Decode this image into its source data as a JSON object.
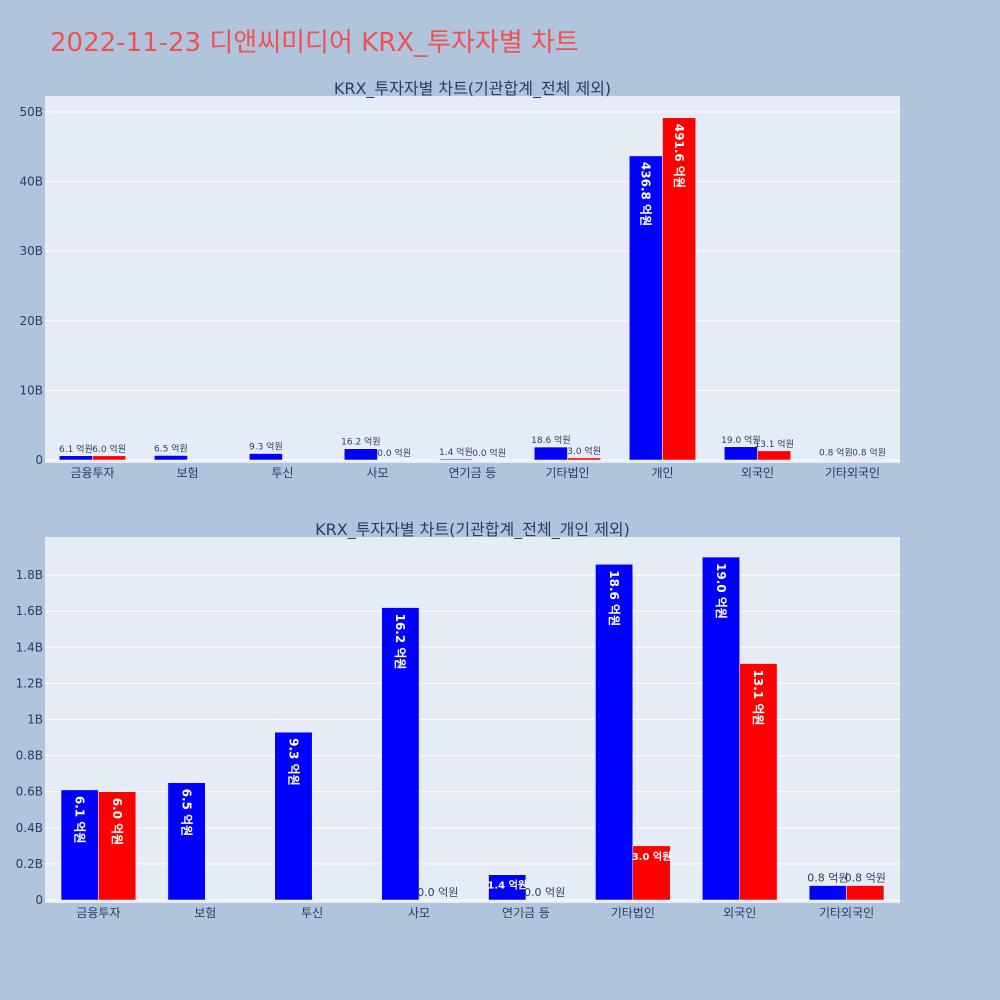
{
  "page_title": "2022-11-23 디앤씨미디어 KRX_투자자별 차트",
  "chart_data": [
    {
      "type": "bar",
      "title": "KRX_투자자별 차트(기관합계_전체 제외)",
      "categories": [
        "금융투자",
        "보험",
        "투신",
        "사모",
        "연기금 등",
        "기타법인",
        "개인",
        "외국인",
        "기타외국인"
      ],
      "ylim": [
        0,
        52
      ],
      "yticks": [
        0,
        10,
        20,
        30,
        40,
        50
      ],
      "ytick_labels": [
        "0",
        "10B",
        "20B",
        "30B",
        "40B",
        "50B"
      ],
      "grid": true,
      "series": [
        {
          "color": "#0000ff",
          "values": [
            0.61,
            0.65,
            0.93,
            1.62,
            0.14,
            1.86,
            43.68,
            1.9,
            0.08
          ],
          "labels": [
            "6.1 억원",
            "6.5 억원",
            "9.3 억원",
            "16.2 억원",
            "1.4 억원",
            "18.6 억원",
            "436.8 억원",
            "19.0 억원",
            "0.8 억원"
          ]
        },
        {
          "color": "#ff0000",
          "values": [
            0.6,
            0,
            0,
            0,
            0,
            0.3,
            49.16,
            1.31,
            0.08
          ],
          "labels": [
            "6.0 억원",
            "",
            "",
            "0.0 억원",
            "0.0 억원",
            "3.0 억원",
            "491.6 억원",
            "13.1 억원",
            "0.8 억원"
          ]
        }
      ]
    },
    {
      "type": "bar",
      "title": "KRX_투자자별 차트(기관합계_전체_개인 제외)",
      "categories": [
        "금융투자",
        "보험",
        "투신",
        "사모",
        "연기금 등",
        "기타법인",
        "외국인",
        "기타외국인"
      ],
      "ylim": [
        0,
        2.0
      ],
      "yticks": [
        0,
        0.2,
        0.4,
        0.6,
        0.8,
        1.0,
        1.2,
        1.4,
        1.6,
        1.8
      ],
      "ytick_labels": [
        "0",
        "0.2B",
        "0.4B",
        "0.6B",
        "0.8B",
        "1B",
        "1.2B",
        "1.4B",
        "1.6B",
        "1.8B"
      ],
      "grid": true,
      "series": [
        {
          "color": "#0000ff",
          "values": [
            0.61,
            0.65,
            0.93,
            1.62,
            0.14,
            1.86,
            1.9,
            0.08
          ],
          "labels": [
            "6.1 억원",
            "6.5 억원",
            "9.3 억원",
            "16.2 억원",
            "1.4 억원",
            "18.6 억원",
            "19.0 억원",
            "0.8 억원"
          ]
        },
        {
          "color": "#ff0000",
          "values": [
            0.6,
            0,
            0,
            0,
            0,
            0.3,
            1.31,
            0.08
          ],
          "labels": [
            "6.0 억원",
            "",
            "",
            "0.0 억원",
            "0.0 억원",
            "3.0 억원",
            "13.1 억원",
            "0.8 억원"
          ]
        }
      ]
    }
  ]
}
